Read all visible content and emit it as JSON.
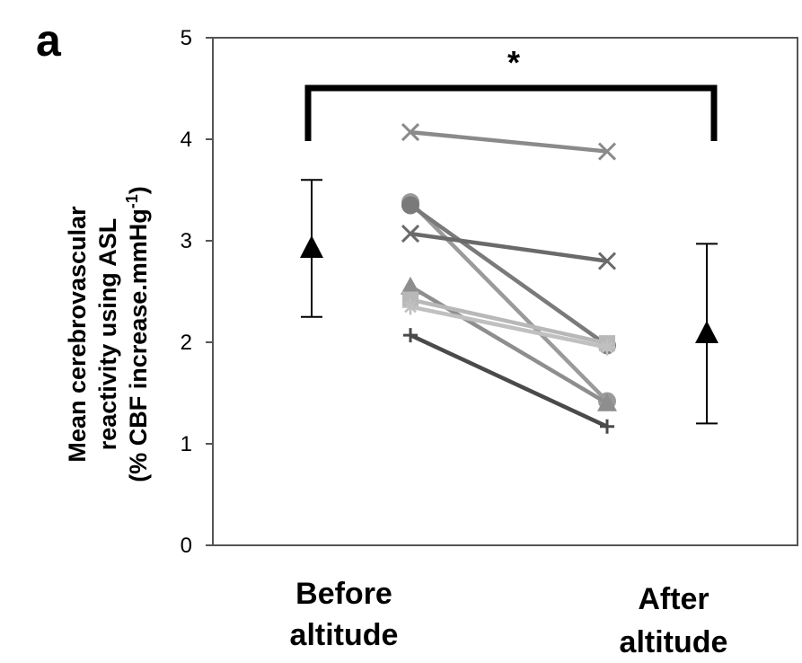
{
  "panel_label": "a",
  "significance_marker": "*",
  "chart_data": {
    "type": "line",
    "title": "",
    "ylabel": [
      "Mean cerebrovascular",
      "reactivity using ASL",
      "(% CBF increase.mmHg",
      "-1",
      ")"
    ],
    "xlabel": "",
    "categories": [
      [
        "Before",
        "altitude"
      ],
      [
        "After",
        "altitude"
      ]
    ],
    "ylim": [
      0,
      5
    ],
    "yticks": [
      "0",
      "1",
      "2",
      "3",
      "4",
      "5"
    ],
    "grid": false,
    "legend": "none",
    "individual_series": [
      {
        "marker": "x",
        "color": "#8a8a8a",
        "values": [
          4.07,
          3.88
        ]
      },
      {
        "marker": "circle",
        "color": "#9a9a9a",
        "values": [
          3.38,
          1.42
        ]
      },
      {
        "marker": "circle",
        "color": "#7a7a7a",
        "values": [
          3.35,
          1.97
        ]
      },
      {
        "marker": "x",
        "color": "#6a6a6a",
        "values": [
          3.07,
          2.8
        ]
      },
      {
        "marker": "triangle",
        "color": "#8e8e8e",
        "values": [
          2.55,
          1.4
        ]
      },
      {
        "marker": "square",
        "color": "#b8b8b8",
        "values": [
          2.42,
          1.99
        ]
      },
      {
        "marker": "star",
        "color": "#c0c0c0",
        "values": [
          2.35,
          1.95
        ]
      },
      {
        "marker": "plus",
        "color": "#4a4a4a",
        "values": [
          2.07,
          1.17
        ]
      }
    ],
    "group_means": [
      {
        "category": "Before altitude",
        "mean": 2.92,
        "error_low": 2.25,
        "error_high": 3.6
      },
      {
        "category": "After altitude",
        "mean": 2.08,
        "error_low": 1.2,
        "error_high": 2.97
      }
    ],
    "significance_bracket": {
      "between": [
        "Before altitude",
        "After altitude"
      ],
      "label": "*"
    }
  }
}
